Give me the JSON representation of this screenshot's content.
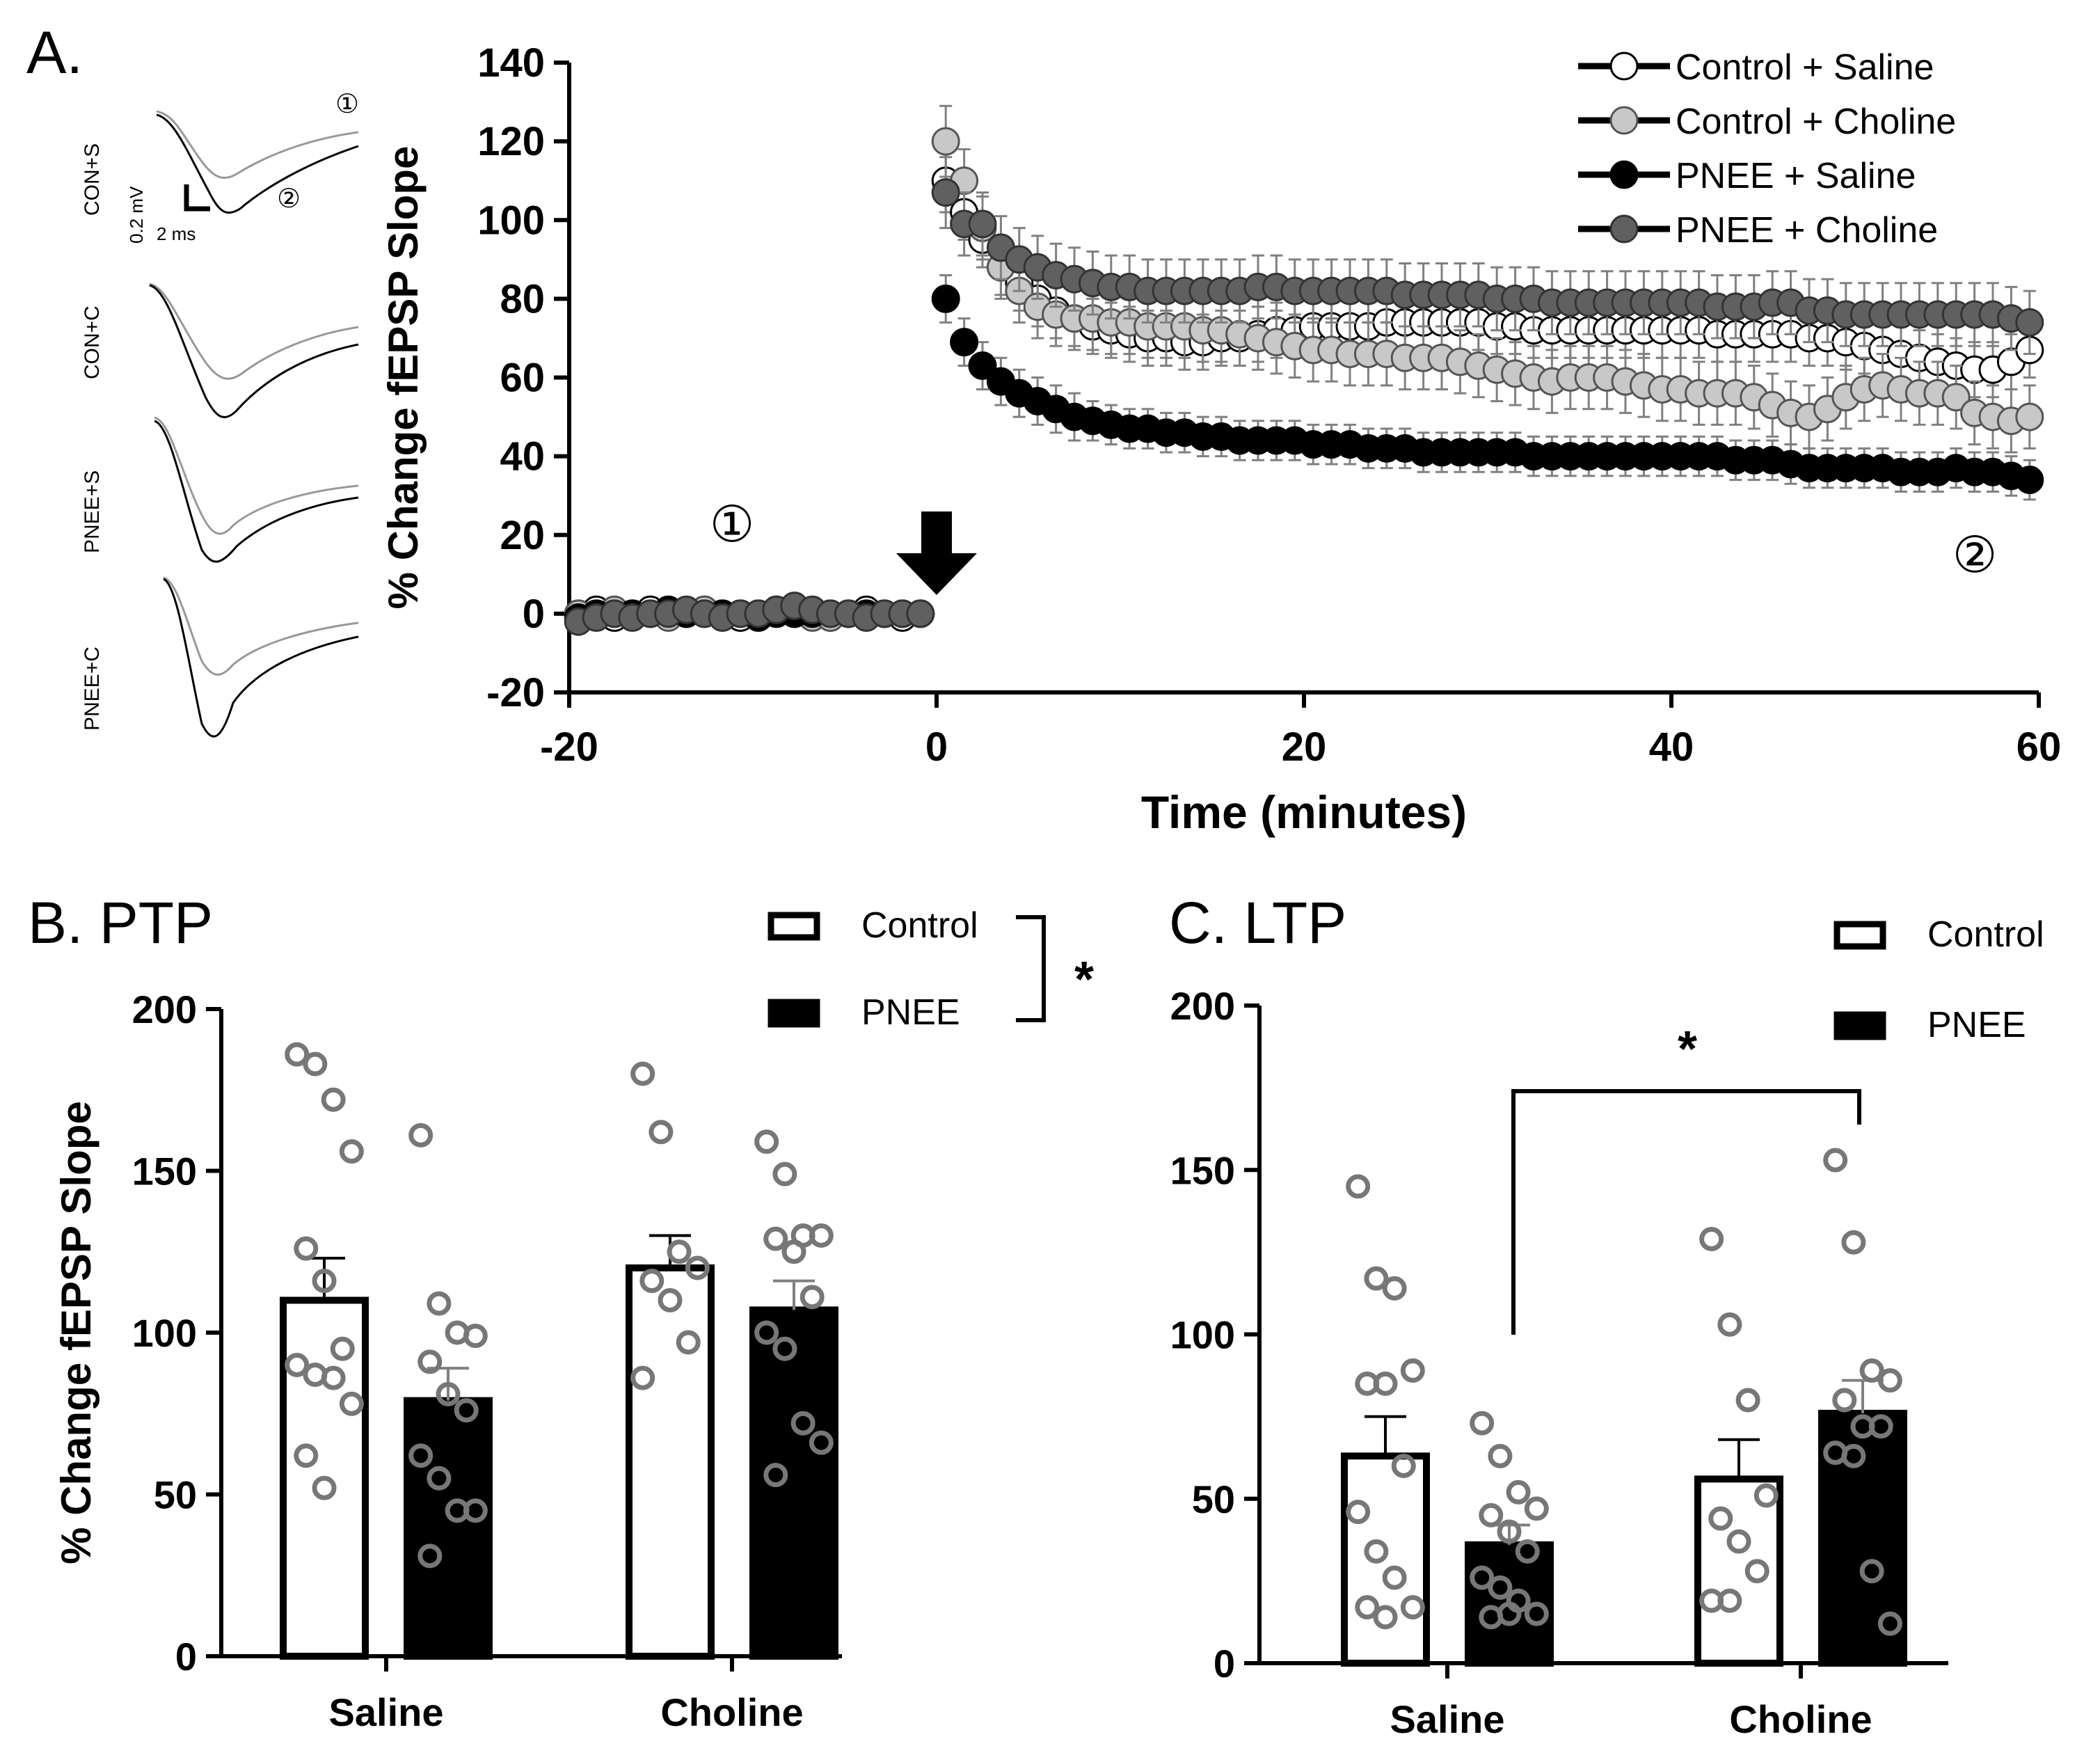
{
  "figure": {
    "panel_a_letter": "A.",
    "panel_b_title": "B. PTP",
    "panel_c_title": "C. LTP",
    "trace_labels": [
      "CON+S",
      "CON+C",
      "PNEE+S",
      "PNEE+C"
    ],
    "scale_bar_voltage": "0.2 mV",
    "scale_bar_time": "2 ms",
    "marker_baseline": "①",
    "marker_post": "②",
    "colors": {
      "black": "#000000",
      "dark_gray": "#606060",
      "light_gray": "#c8c8c8",
      "white": "#ffffff",
      "dot": "#777777",
      "error": "#808080"
    }
  },
  "chart_data": [
    {
      "id": "A",
      "type": "scatter",
      "title": "",
      "xlabel": "Time (minutes)",
      "ylabel": "% Change fEPSP Slope",
      "xlim": [
        -20,
        60
      ],
      "ylim": [
        -20,
        140
      ],
      "xticks": [
        "-20",
        "0",
        "20",
        "40",
        "60"
      ],
      "yticks": [
        "-20",
        "0",
        "20",
        "40",
        "60",
        "80",
        "100",
        "120",
        "140"
      ],
      "arrow_at_time": 0,
      "legend": [
        "Control + Saline",
        "Control + Choline",
        "PNEE + Saline",
        "PNEE + Choline"
      ],
      "series": [
        {
          "name": "Control + Saline",
          "fill": "#ffffff",
          "baseline": [
            0,
            1,
            -1,
            0,
            1,
            0,
            0,
            1,
            0,
            -1,
            0,
            1,
            0,
            0,
            -1,
            0,
            1,
            0,
            -1,
            0
          ],
          "post": [
            110,
            102,
            95,
            88,
            84,
            80,
            77,
            75,
            73,
            72,
            71,
            70,
            70,
            69,
            69,
            70,
            70,
            71,
            72,
            72,
            73,
            73,
            73,
            73,
            74,
            74,
            74,
            74,
            74,
            74,
            73,
            73,
            72,
            72,
            72,
            72,
            72,
            72,
            72,
            72,
            72,
            72,
            71,
            71,
            71,
            71,
            71,
            70,
            70,
            69,
            68,
            67,
            66,
            65,
            64,
            63,
            62,
            62,
            64,
            67
          ],
          "err": [
            8,
            7,
            7,
            7,
            7,
            7,
            7,
            7,
            7,
            7,
            7,
            7,
            7,
            7,
            7,
            7,
            7,
            7,
            7,
            7,
            7,
            7,
            7,
            7,
            7,
            7,
            7,
            7,
            7,
            7,
            7,
            7,
            7,
            7,
            7,
            7,
            7,
            7,
            7,
            7,
            7,
            7,
            7,
            7,
            7,
            7,
            7,
            7,
            7,
            7,
            7,
            7,
            7,
            7,
            7,
            7,
            7,
            7,
            7,
            7
          ]
        },
        {
          "name": "Control + Choline",
          "fill": "#c8c8c8",
          "baseline": [
            0,
            0,
            1,
            0,
            0,
            -1,
            0,
            1,
            0,
            0,
            0,
            1,
            0,
            -1,
            -1,
            0,
            0,
            0,
            0,
            0
          ],
          "post": [
            120,
            110,
            98,
            88,
            82,
            78,
            76,
            75,
            75,
            74,
            74,
            73,
            73,
            73,
            72,
            72,
            71,
            70,
            69,
            68,
            67,
            67,
            66,
            66,
            66,
            65,
            65,
            65,
            64,
            63,
            62,
            61,
            60,
            59,
            60,
            60,
            60,
            59,
            58,
            57,
            57,
            56,
            56,
            56,
            55,
            53,
            51,
            50,
            52,
            55,
            57,
            58,
            57,
            56,
            56,
            55,
            51,
            50,
            49,
            50
          ],
          "err": [
            9,
            8,
            8,
            8,
            8,
            8,
            8,
            8,
            8,
            8,
            8,
            8,
            8,
            8,
            8,
            8,
            8,
            8,
            8,
            8,
            8,
            8,
            8,
            8,
            8,
            8,
            8,
            8,
            8,
            8,
            8,
            8,
            8,
            8,
            8,
            8,
            8,
            8,
            8,
            8,
            8,
            8,
            8,
            8,
            8,
            8,
            8,
            8,
            8,
            8,
            8,
            8,
            8,
            8,
            8,
            8,
            8,
            8,
            8,
            8
          ]
        },
        {
          "name": "PNEE + Saline",
          "fill": "#000000",
          "baseline": [
            -1,
            0,
            0,
            0,
            0,
            1,
            0,
            0,
            0,
            0,
            -1,
            0,
            0,
            0,
            0,
            0,
            0,
            0,
            0,
            0
          ],
          "post": [
            80,
            69,
            63,
            59,
            56,
            54,
            52,
            50,
            49,
            48,
            47,
            47,
            46,
            46,
            45,
            45,
            44,
            44,
            44,
            44,
            43,
            43,
            43,
            42,
            42,
            42,
            41,
            41,
            41,
            41,
            41,
            41,
            40,
            40,
            40,
            40,
            40,
            40,
            40,
            40,
            40,
            40,
            40,
            39,
            39,
            39,
            38,
            37,
            37,
            37,
            37,
            37,
            36,
            36,
            36,
            37,
            36,
            36,
            35,
            34
          ],
          "err": [
            6,
            6,
            6,
            6,
            6,
            6,
            6,
            6,
            5,
            5,
            5,
            5,
            5,
            5,
            5,
            5,
            5,
            5,
            5,
            5,
            5,
            5,
            5,
            5,
            5,
            5,
            5,
            5,
            5,
            5,
            5,
            5,
            5,
            5,
            5,
            5,
            5,
            5,
            5,
            5,
            5,
            5,
            5,
            5,
            5,
            5,
            5,
            5,
            5,
            5,
            5,
            5,
            5,
            5,
            5,
            5,
            5,
            5,
            5,
            5
          ]
        },
        {
          "name": "PNEE + Choline",
          "fill": "#606060",
          "baseline": [
            -2,
            -1,
            0,
            -1,
            0,
            0,
            1,
            0,
            -1,
            0,
            0,
            1,
            2,
            1,
            0,
            0,
            -1,
            0,
            0,
            0
          ],
          "post": [
            107,
            99,
            99,
            93,
            90,
            88,
            86,
            85,
            84,
            83,
            83,
            82,
            82,
            82,
            82,
            82,
            82,
            83,
            83,
            82,
            82,
            82,
            82,
            82,
            82,
            81,
            81,
            81,
            81,
            81,
            80,
            80,
            80,
            79,
            79,
            79,
            79,
            79,
            79,
            79,
            79,
            79,
            78,
            78,
            78,
            79,
            79,
            77,
            77,
            76,
            76,
            76,
            76,
            76,
            76,
            76,
            76,
            76,
            75,
            74
          ],
          "err": [
            9,
            8,
            8,
            8,
            8,
            8,
            8,
            8,
            8,
            8,
            8,
            8,
            8,
            8,
            8,
            8,
            8,
            8,
            8,
            8,
            8,
            8,
            8,
            8,
            8,
            8,
            8,
            8,
            8,
            8,
            8,
            8,
            8,
            8,
            8,
            8,
            8,
            8,
            8,
            8,
            8,
            8,
            8,
            8,
            8,
            8,
            8,
            8,
            8,
            8,
            8,
            8,
            8,
            8,
            8,
            8,
            8,
            8,
            8,
            8
          ]
        }
      ]
    },
    {
      "id": "B",
      "type": "bar",
      "title": "B. PTP",
      "xlabel": "",
      "ylabel": "% Change fEPSP Slope",
      "ylim": [
        0,
        200
      ],
      "yticks": [
        "0",
        "50",
        "100",
        "150",
        "200"
      ],
      "categories": [
        "Saline",
        "Choline"
      ],
      "legend": [
        "Control",
        "PNEE"
      ],
      "significance": "*",
      "series": [
        {
          "name": "Control",
          "values": [
            110,
            120
          ],
          "err": [
            13,
            10
          ],
          "points": [
            [
              186,
              183,
              172,
              156,
              126,
              116,
              95,
              90,
              87,
              86,
              78,
              62,
              52
            ],
            [
              180,
              162,
              125,
              120,
              116,
              110,
              97,
              86
            ]
          ]
        },
        {
          "name": "PNEE",
          "values": [
            79,
            107
          ],
          "err": [
            10,
            9
          ],
          "points": [
            [
              161,
              109,
              100,
              99,
              91,
              81,
              76,
              62,
              55,
              45,
              45,
              31
            ],
            [
              159,
              149,
              130,
              130,
              129,
              125,
              111,
              100,
              95,
              72,
              66,
              56
            ]
          ]
        }
      ]
    },
    {
      "id": "C",
      "type": "bar",
      "title": "C. LTP",
      "xlabel": "",
      "ylabel": "",
      "ylim": [
        0,
        200
      ],
      "yticks": [
        "0",
        "50",
        "100",
        "150",
        "200"
      ],
      "categories": [
        "Saline",
        "Choline"
      ],
      "legend": [
        "Control",
        "PNEE"
      ],
      "significance": "*",
      "series": [
        {
          "name": "Control",
          "values": [
            63,
            56
          ],
          "err": [
            12,
            12
          ],
          "points": [
            [
              145,
              117,
              114,
              89,
              85,
              85,
              60,
              46,
              34,
              26,
              17,
              17,
              14
            ],
            [
              129,
              103,
              80,
              51,
              44,
              37,
              28,
              19,
              19
            ]
          ]
        },
        {
          "name": "PNEE",
          "values": [
            36,
            76
          ],
          "err": [
            6,
            10
          ],
          "points": [
            [
              73,
              63,
              52,
              47,
              45,
              40,
              34,
              26,
              23,
              19,
              15,
              14,
              15
            ],
            [
              153,
              128,
              89,
              86,
              80,
              72,
              72,
              64,
              63,
              28,
              12
            ]
          ]
        }
      ]
    }
  ]
}
